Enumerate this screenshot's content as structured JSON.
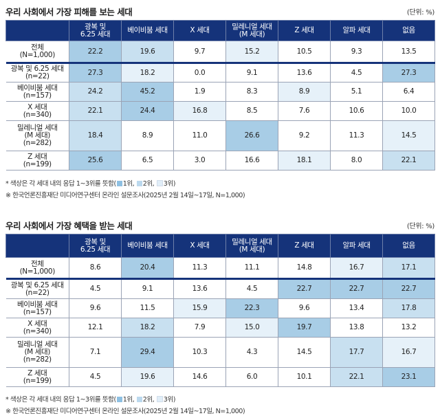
{
  "chart_data": [
    {
      "type": "table",
      "title": "우리 사회에서 가장 피해를 보는 세대",
      "unit": "(단위: %)",
      "columns": [
        "광복 및\n6.25 세대",
        "베이비붐 세대",
        "X 세대",
        "밀레니얼 세대\n(M 세대)",
        "Z 세대",
        "알파 세대",
        "없음"
      ],
      "rows": [
        {
          "label": "전체\n(N=1,000)",
          "values": [
            "22.2",
            "19.6",
            "9.7",
            "15.2",
            "10.5",
            "9.3",
            "13.5"
          ],
          "ranks": [
            1,
            2,
            0,
            3,
            0,
            0,
            0
          ]
        },
        {
          "label": "광복 및 6.25 세대\n(n=22)",
          "values": [
            "27.3",
            "18.2",
            "0.0",
            "9.1",
            "13.6",
            "4.5",
            "27.3"
          ],
          "ranks": [
            1,
            3,
            0,
            0,
            0,
            0,
            1
          ]
        },
        {
          "label": "베이비붐 세대\n(n=157)",
          "values": [
            "24.2",
            "45.2",
            "1.9",
            "8.3",
            "8.9",
            "5.1",
            "6.4"
          ],
          "ranks": [
            2,
            1,
            0,
            0,
            3,
            0,
            0
          ]
        },
        {
          "label": "X 세대\n(n=340)",
          "values": [
            "22.1",
            "24.4",
            "16.8",
            "8.5",
            "7.6",
            "10.6",
            "10.0"
          ],
          "ranks": [
            2,
            1,
            3,
            0,
            0,
            0,
            0
          ]
        },
        {
          "label": "밀레니얼 세대\n(M 세대)\n(n=282)",
          "values": [
            "18.4",
            "8.9",
            "11.0",
            "26.6",
            "9.2",
            "11.3",
            "14.5"
          ],
          "ranks": [
            2,
            0,
            0,
            1,
            0,
            0,
            3
          ]
        },
        {
          "label": "Z 세대\n(n=199)",
          "values": [
            "25.6",
            "6.5",
            "3.0",
            "16.6",
            "18.1",
            "8.0",
            "22.1"
          ],
          "ranks": [
            1,
            0,
            0,
            0,
            3,
            0,
            2
          ]
        }
      ],
      "note1_prefix": "* 색상은 각 세대 내의 응답 1~3위를 뜻함(",
      "note1_legend": [
        "1위,",
        "2위,",
        "3위"
      ],
      "note1_suffix": ")",
      "note2": "※ 한국언론진흥재단 미디어연구센터 온라인 설문조사(2025년 2월 14일~17일, N=1,000)"
    },
    {
      "type": "table",
      "title": "우리 사회에서 가장 혜택을 받는 세대",
      "unit": "(단위: %)",
      "columns": [
        "광복 및\n6.25 세대",
        "베이비붐 세대",
        "X 세대",
        "밀레니얼 세대\n(M 세대)",
        "Z 세대",
        "알파 세대",
        "없음"
      ],
      "rows": [
        {
          "label": "전체\n(N=1,000)",
          "values": [
            "8.6",
            "20.4",
            "11.3",
            "11.1",
            "14.8",
            "16.7",
            "17.1"
          ],
          "ranks": [
            0,
            1,
            0,
            0,
            0,
            3,
            2
          ]
        },
        {
          "label": "광복 및 6.25 세대\n(n=22)",
          "values": [
            "4.5",
            "9.1",
            "13.6",
            "4.5",
            "22.7",
            "22.7",
            "22.7"
          ],
          "ranks": [
            0,
            0,
            0,
            0,
            1,
            1,
            1
          ]
        },
        {
          "label": "베이비붐 세대\n(n=157)",
          "values": [
            "9.6",
            "11.5",
            "15.9",
            "22.3",
            "9.6",
            "13.4",
            "17.8"
          ],
          "ranks": [
            0,
            0,
            3,
            1,
            0,
            0,
            2
          ]
        },
        {
          "label": "X 세대\n(n=340)",
          "values": [
            "12.1",
            "18.2",
            "7.9",
            "15.0",
            "19.7",
            "13.8",
            "13.2"
          ],
          "ranks": [
            0,
            2,
            0,
            3,
            1,
            0,
            0
          ]
        },
        {
          "label": "밀레니얼 세대\n(M 세대)\n(n=282)",
          "values": [
            "7.1",
            "29.4",
            "10.3",
            "4.3",
            "14.5",
            "17.7",
            "16.7"
          ],
          "ranks": [
            0,
            1,
            0,
            0,
            0,
            2,
            3
          ]
        },
        {
          "label": "Z 세대\n(n=199)",
          "values": [
            "4.5",
            "19.6",
            "14.6",
            "6.0",
            "10.1",
            "22.1",
            "23.1"
          ],
          "ranks": [
            0,
            3,
            0,
            0,
            0,
            2,
            1
          ]
        }
      ],
      "note1_prefix": "* 색상은 각 세대 내의 응답 1~3위를 뜻함(",
      "note1_legend": [
        "1위,",
        "2위,",
        "3위"
      ],
      "note1_suffix": ")",
      "note2": "※ 한국언론진흥재단 미디어연구센터 온라인 설문조사(2025년 2월 14일~17일, N=1,000)"
    }
  ]
}
